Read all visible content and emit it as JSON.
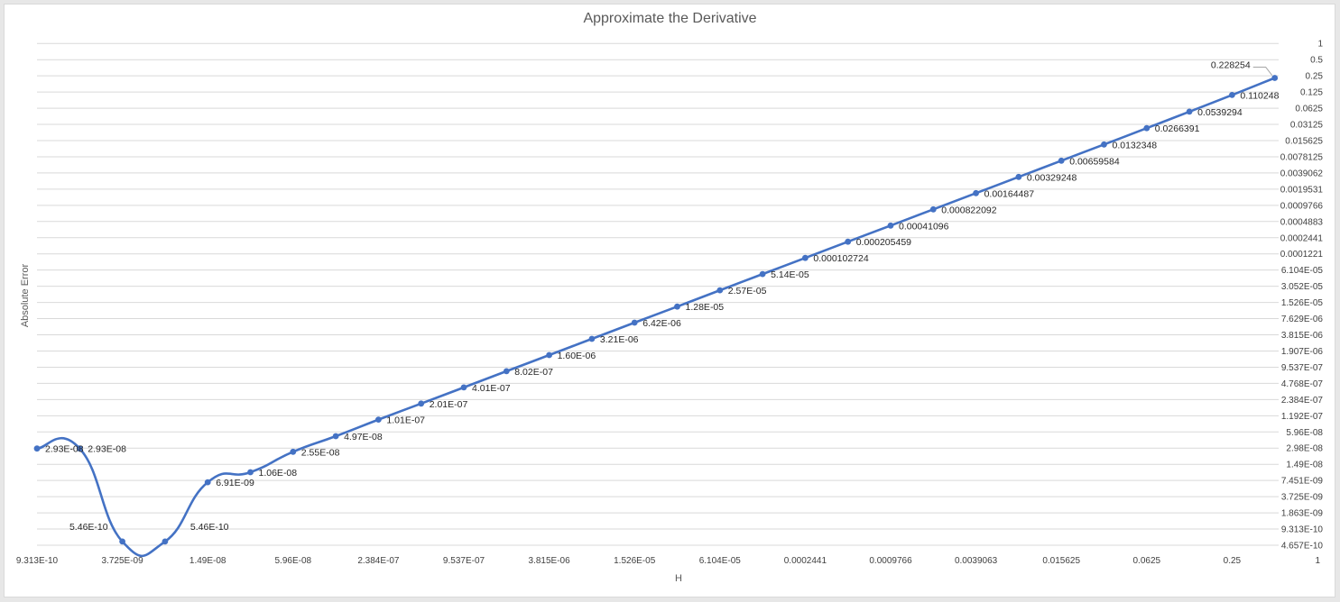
{
  "chart_data": {
    "type": "line",
    "title": "Approximate the Derivative",
    "xlabel": "H",
    "ylabel": "Absolute Error",
    "x_scale": "log2",
    "y_scale": "log2",
    "grid": "horizontal",
    "legend": "none",
    "line_color": "#4472c4",
    "x_tick_labels": [
      "9.313E-10",
      "3.725E-09",
      "1.49E-08",
      "5.96E-08",
      "2.384E-07",
      "9.537E-07",
      "3.815E-06",
      "1.526E-05",
      "6.104E-05",
      "0.0002441",
      "0.0009766",
      "0.0039063",
      "0.015625",
      "0.0625",
      "0.25",
      "1"
    ],
    "y_tick_labels": [
      "4.657E-10",
      "9.313E-10",
      "1.863E-09",
      "3.725E-09",
      "7.451E-09",
      "1.49E-08",
      "2.98E-08",
      "5.96E-08",
      "1.192E-07",
      "2.384E-07",
      "4.768E-07",
      "9.537E-07",
      "1.907E-06",
      "3.815E-06",
      "7.629E-06",
      "1.526E-05",
      "3.052E-05",
      "6.104E-05",
      "0.0001221",
      "0.0002441",
      "0.0004883",
      "0.0009766",
      "0.0019531",
      "0.0039062",
      "0.0078125",
      "0.015625",
      "0.03125",
      "0.0625",
      "0.125",
      "0.25",
      "0.5",
      "1"
    ],
    "series": [
      {
        "x": [
          9.313e-10,
          1.863e-09,
          3.725e-09,
          7.451e-09,
          1.49e-08,
          2.98e-08,
          5.96e-08,
          1.192e-07,
          2.384e-07,
          4.768e-07,
          9.537e-07,
          1.907e-06,
          3.815e-06,
          7.629e-06,
          1.526e-05,
          3.052e-05,
          6.104e-05,
          0.0001221,
          0.0002441,
          0.0004883,
          0.0009766,
          0.0019531,
          0.0039063,
          0.0078125,
          0.015625,
          0.03125,
          0.0625,
          0.125,
          0.25,
          0.5
        ],
        "y": [
          2.93e-08,
          2.93e-08,
          5.46e-10,
          5.46e-10,
          6.91e-09,
          1.06e-08,
          2.55e-08,
          4.97e-08,
          1.01e-07,
          2.01e-07,
          4.01e-07,
          8.02e-07,
          1.6e-06,
          3.21e-06,
          6.42e-06,
          1.28e-05,
          2.57e-05,
          5.14e-05,
          0.000102724,
          0.000205459,
          0.00041096,
          0.000822092,
          0.00164487,
          0.00329248,
          0.00659584,
          0.0132348,
          0.0266391,
          0.0539294,
          0.110248,
          0.228254
        ],
        "labels": [
          "2.93E-08",
          "2.93E-08",
          "5.46E-10",
          "5.46E-10",
          "6.91E-09",
          "1.06E-08",
          "2.55E-08",
          "4.97E-08",
          "1.01E-07",
          "2.01E-07",
          "4.01E-07",
          "8.02E-07",
          "1.60E-06",
          "3.21E-06",
          "6.42E-06",
          "1.28E-05",
          "2.57E-05",
          "5.14E-05",
          "0.000102724",
          "0.000205459",
          "0.00041096",
          "0.000822092",
          "0.00164487",
          "0.00329248",
          "0.00659584",
          "0.0132348",
          "0.0266391",
          "0.0539294",
          "0.110248",
          "0.228254"
        ]
      }
    ]
  }
}
